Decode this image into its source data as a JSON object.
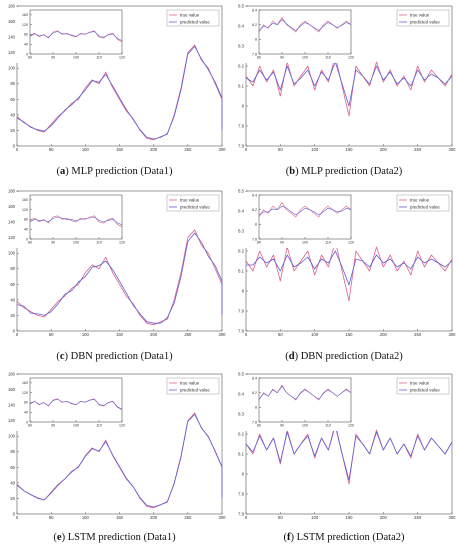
{
  "legend": {
    "true_label": "true value",
    "pred_label": "predicted value"
  },
  "colors": {
    "true": "#e0608a",
    "pred": "#5f5fd8",
    "axis": "#555555",
    "grid": "#dddddd"
  },
  "panels": [
    {
      "letter": "a",
      "caption_text": " MLP prediction (Data1)"
    },
    {
      "letter": "b",
      "caption_text": " MLP prediction (Data2)"
    },
    {
      "letter": "c",
      "caption_text": " DBN prediction (Data1)"
    },
    {
      "letter": "d",
      "caption_text": " DBN prediction (Data2)"
    },
    {
      "letter": "e",
      "caption_text": " LSTM prediction (Data1)"
    },
    {
      "letter": "f",
      "caption_text": " LSTM prediction (Data2)"
    }
  ],
  "chart_data": [
    {
      "type": "line",
      "dataset": "Data1",
      "model": "MLP",
      "xlim": [
        0,
        300
      ],
      "ylim": [
        0,
        180
      ],
      "xticks": [
        0,
        50,
        100,
        150,
        200,
        250,
        300
      ],
      "yticks": [
        0,
        20,
        40,
        60,
        80,
        100,
        120,
        140,
        160,
        180
      ],
      "x_step": 10,
      "series": [
        {
          "name": "true value",
          "values": [
            38,
            30,
            25,
            20,
            18,
            28,
            38,
            45,
            55,
            60,
            75,
            85,
            80,
            95,
            75,
            60,
            45,
            35,
            20,
            10,
            8,
            12,
            15,
            40,
            75,
            120,
            130,
            110,
            100,
            80,
            60,
            45,
            40,
            35,
            30,
            20
          ]
        },
        {
          "name": "predicted value",
          "values": [
            36,
            31,
            24,
            21,
            19,
            26,
            36,
            46,
            53,
            62,
            72,
            84,
            82,
            92,
            77,
            62,
            47,
            34,
            21,
            11,
            9,
            11,
            16,
            38,
            72,
            118,
            128,
            112,
            98,
            82,
            62,
            46,
            41,
            34,
            29,
            21
          ]
        }
      ],
      "inset": {
        "xlim": [
          80,
          120
        ],
        "ylim": [
          0,
          180
        ],
        "xticks": [
          80,
          90,
          100,
          110,
          120
        ],
        "yticks": [
          0,
          20,
          40,
          60,
          80,
          100,
          120,
          140,
          160,
          180
        ],
        "series": [
          {
            "name": "true value",
            "values": [
              75,
              85,
              70,
              80,
              65,
              90,
              95,
              80,
              85,
              75,
              70,
              85,
              80,
              90,
              95,
              70,
              65,
              80,
              85,
              60,
              50
            ]
          },
          {
            "name": "predicted value",
            "values": [
              72,
              83,
              74,
              78,
              68,
              86,
              92,
              83,
              82,
              78,
              72,
              82,
              82,
              88,
              92,
              74,
              68,
              78,
              82,
              64,
              55
            ]
          }
        ]
      }
    },
    {
      "type": "line",
      "dataset": "Data2",
      "model": "MLP",
      "xlim": [
        0,
        300
      ],
      "ylim": [
        7.8,
        8.5
      ],
      "xticks": [
        0,
        50,
        100,
        150,
        200,
        250,
        300
      ],
      "yticks": [
        7.8,
        7.9,
        8.0,
        8.1,
        8.2,
        8.3,
        8.4,
        8.5
      ],
      "x_step": 10,
      "series": [
        {
          "name": "true value",
          "values": [
            8.15,
            8.1,
            8.2,
            8.12,
            8.18,
            8.05,
            8.22,
            8.1,
            8.15,
            8.2,
            8.08,
            8.18,
            8.12,
            8.25,
            8.1,
            7.95,
            8.2,
            8.15,
            8.1,
            8.22,
            8.12,
            8.18,
            8.1,
            8.15,
            8.08,
            8.2,
            8.12,
            8.18,
            8.14,
            8.1,
            8.16
          ]
        },
        {
          "name": "predicted value",
          "values": [
            8.14,
            8.12,
            8.18,
            8.13,
            8.17,
            8.08,
            8.2,
            8.11,
            8.14,
            8.18,
            8.1,
            8.17,
            8.13,
            8.22,
            8.11,
            8.0,
            8.18,
            8.15,
            8.11,
            8.2,
            8.13,
            8.17,
            8.11,
            8.14,
            8.1,
            8.18,
            8.13,
            8.16,
            8.14,
            8.11,
            8.15
          ]
        }
      ],
      "inset": {
        "xlim": [
          80,
          120
        ],
        "ylim": [
          7.8,
          8.4
        ],
        "xticks": [
          80,
          90,
          100,
          110,
          120
        ],
        "yticks": [
          7.8,
          8.0,
          8.2,
          8.4
        ],
        "series": [
          {
            "name": "true value",
            "values": [
              8.1,
              8.2,
              8.15,
              8.25,
              8.2,
              8.3,
              8.2,
              8.15,
              8.1,
              8.2,
              8.25,
              8.2,
              8.15,
              8.1,
              8.2,
              8.25,
              8.2,
              8.15,
              8.2,
              8.25,
              8.2
            ]
          },
          {
            "name": "predicted value",
            "values": [
              8.12,
              8.18,
              8.16,
              8.22,
              8.2,
              8.27,
              8.21,
              8.16,
              8.12,
              8.18,
              8.23,
              8.2,
              8.16,
              8.12,
              8.18,
              8.23,
              8.2,
              8.16,
              8.19,
              8.23,
              8.2
            ]
          }
        ]
      }
    },
    {
      "type": "line",
      "dataset": "Data1",
      "model": "DBN",
      "xlim": [
        0,
        300
      ],
      "ylim": [
        0,
        180
      ],
      "xticks": [
        0,
        50,
        100,
        150,
        200,
        250,
        300
      ],
      "yticks": [
        0,
        20,
        40,
        60,
        80,
        100,
        120,
        140,
        160,
        180
      ],
      "x_step": 10,
      "series": [
        {
          "name": "true value",
          "values": [
            38,
            30,
            25,
            20,
            18,
            28,
            38,
            45,
            55,
            60,
            75,
            85,
            80,
            95,
            75,
            60,
            45,
            35,
            20,
            10,
            8,
            12,
            15,
            40,
            75,
            120,
            130,
            110,
            100,
            80,
            60,
            45,
            40,
            35,
            30,
            20
          ]
        },
        {
          "name": "predicted value",
          "values": [
            34,
            32,
            23,
            22,
            20,
            25,
            35,
            47,
            52,
            63,
            70,
            82,
            84,
            90,
            79,
            64,
            49,
            33,
            22,
            12,
            10,
            10,
            17,
            36,
            70,
            115,
            126,
            114,
            96,
            84,
            64,
            47,
            42,
            33,
            28,
            22
          ]
        }
      ],
      "inset": {
        "xlim": [
          80,
          120
        ],
        "ylim": [
          0,
          180
        ],
        "xticks": [
          80,
          90,
          100,
          110,
          120
        ],
        "yticks": [
          0,
          20,
          40,
          60,
          80,
          100,
          120,
          140,
          160,
          180
        ],
        "series": [
          {
            "name": "true value",
            "values": [
              75,
              85,
              70,
              80,
              65,
              90,
              95,
              80,
              85,
              75,
              70,
              85,
              80,
              90,
              95,
              70,
              65,
              80,
              85,
              60,
              50
            ]
          },
          {
            "name": "predicted value",
            "values": [
              70,
              80,
              76,
              76,
              70,
              84,
              90,
              85,
              80,
              80,
              74,
              80,
              84,
              86,
              90,
              76,
              70,
              76,
              80,
              66,
              58
            ]
          }
        ]
      }
    },
    {
      "type": "line",
      "dataset": "Data2",
      "model": "DBN",
      "xlim": [
        0,
        300
      ],
      "ylim": [
        7.8,
        8.5
      ],
      "xticks": [
        0,
        50,
        100,
        150,
        200,
        250,
        300
      ],
      "yticks": [
        7.8,
        7.9,
        8.0,
        8.1,
        8.2,
        8.3,
        8.4,
        8.5
      ],
      "x_step": 10,
      "series": [
        {
          "name": "true value",
          "values": [
            8.15,
            8.1,
            8.2,
            8.12,
            8.18,
            8.05,
            8.22,
            8.1,
            8.15,
            8.2,
            8.08,
            8.18,
            8.12,
            8.25,
            8.1,
            7.95,
            8.2,
            8.15,
            8.1,
            8.22,
            8.12,
            8.18,
            8.1,
            8.15,
            8.08,
            8.2,
            8.12,
            8.18,
            8.14,
            8.1,
            8.16
          ]
        },
        {
          "name": "predicted value",
          "values": [
            8.13,
            8.13,
            8.17,
            8.14,
            8.16,
            8.1,
            8.18,
            8.12,
            8.14,
            8.17,
            8.11,
            8.16,
            8.14,
            8.2,
            8.12,
            8.03,
            8.16,
            8.15,
            8.12,
            8.18,
            8.14,
            8.16,
            8.12,
            8.14,
            8.11,
            8.17,
            8.14,
            8.16,
            8.14,
            8.12,
            8.15
          ]
        }
      ],
      "inset": {
        "xlim": [
          80,
          120
        ],
        "ylim": [
          7.8,
          8.4
        ],
        "xticks": [
          80,
          90,
          100,
          110,
          120
        ],
        "yticks": [
          7.8,
          8.0,
          8.2,
          8.4
        ],
        "series": [
          {
            "name": "true value",
            "values": [
              8.1,
              8.2,
              8.15,
              8.25,
              8.2,
              8.3,
              8.2,
              8.15,
              8.1,
              8.2,
              8.25,
              8.2,
              8.15,
              8.1,
              8.2,
              8.25,
              8.2,
              8.15,
              8.2,
              8.25,
              8.2
            ]
          },
          {
            "name": "predicted value",
            "values": [
              8.13,
              8.17,
              8.17,
              8.21,
              8.2,
              8.25,
              8.22,
              8.17,
              8.13,
              8.17,
              8.22,
              8.2,
              8.17,
              8.13,
              8.17,
              8.22,
              8.2,
              8.17,
              8.18,
              8.22,
              8.2
            ]
          }
        ]
      }
    },
    {
      "type": "line",
      "dataset": "Data1",
      "model": "LSTM",
      "xlim": [
        0,
        300
      ],
      "ylim": [
        0,
        180
      ],
      "xticks": [
        0,
        50,
        100,
        150,
        200,
        250,
        300
      ],
      "yticks": [
        0,
        20,
        40,
        60,
        80,
        100,
        120,
        140,
        160,
        180
      ],
      "x_step": 10,
      "series": [
        {
          "name": "true value",
          "values": [
            38,
            30,
            25,
            20,
            18,
            28,
            38,
            45,
            55,
            60,
            75,
            85,
            80,
            95,
            75,
            60,
            45,
            35,
            20,
            10,
            8,
            12,
            15,
            40,
            75,
            120,
            130,
            110,
            100,
            80,
            60,
            45,
            40,
            35,
            30,
            20
          ]
        },
        {
          "name": "predicted value",
          "values": [
            37,
            30,
            25,
            21,
            18,
            27,
            37,
            45,
            54,
            61,
            74,
            84,
            81,
            93,
            76,
            61,
            46,
            35,
            21,
            11,
            9,
            12,
            16,
            39,
            73,
            119,
            128,
            111,
            99,
            81,
            61,
            46,
            40,
            34,
            30,
            21
          ]
        }
      ],
      "inset": {
        "xlim": [
          80,
          120
        ],
        "ylim": [
          0,
          180
        ],
        "xticks": [
          80,
          90,
          100,
          110,
          120
        ],
        "yticks": [
          0,
          20,
          40,
          60,
          80,
          100,
          120,
          140,
          160,
          180
        ],
        "series": [
          {
            "name": "true value",
            "values": [
              75,
              85,
              70,
              80,
              65,
              90,
              95,
              80,
              85,
              75,
              70,
              85,
              80,
              90,
              95,
              70,
              65,
              80,
              85,
              60,
              50
            ]
          },
          {
            "name": "predicted value",
            "values": [
              74,
              84,
              72,
              79,
              67,
              88,
              93,
              82,
              84,
              77,
              71,
              84,
              81,
              89,
              93,
              72,
              67,
              79,
              84,
              62,
              52
            ]
          }
        ]
      }
    },
    {
      "type": "line",
      "dataset": "Data2",
      "model": "LSTM",
      "xlim": [
        0,
        300
      ],
      "ylim": [
        7.8,
        8.5
      ],
      "xticks": [
        0,
        50,
        100,
        150,
        200,
        250,
        300
      ],
      "yticks": [
        7.8,
        7.9,
        8.0,
        8.1,
        8.2,
        8.3,
        8.4,
        8.5
      ],
      "x_step": 10,
      "series": [
        {
          "name": "true value",
          "values": [
            8.15,
            8.1,
            8.2,
            8.12,
            8.18,
            8.05,
            8.22,
            8.1,
            8.15,
            8.2,
            8.08,
            8.18,
            8.12,
            8.25,
            8.1,
            7.95,
            8.2,
            8.15,
            8.1,
            8.22,
            8.12,
            8.18,
            8.1,
            8.15,
            8.08,
            8.2,
            8.12,
            8.18,
            8.14,
            8.1,
            8.16
          ]
        },
        {
          "name": "predicted value",
          "values": [
            8.15,
            8.11,
            8.19,
            8.12,
            8.18,
            8.06,
            8.21,
            8.1,
            8.15,
            8.19,
            8.09,
            8.18,
            8.12,
            8.24,
            8.1,
            7.97,
            8.19,
            8.15,
            8.1,
            8.21,
            8.12,
            8.18,
            8.1,
            8.15,
            8.09,
            8.19,
            8.12,
            8.18,
            8.14,
            8.1,
            8.16
          ]
        }
      ],
      "inset": {
        "xlim": [
          80,
          120
        ],
        "ylim": [
          7.8,
          8.4
        ],
        "xticks": [
          80,
          90,
          100,
          110,
          120
        ],
        "yticks": [
          7.8,
          8.0,
          8.2,
          8.4
        ],
        "series": [
          {
            "name": "true value",
            "values": [
              8.1,
              8.2,
              8.15,
              8.25,
              8.2,
              8.3,
              8.2,
              8.15,
              8.1,
              8.2,
              8.25,
              8.2,
              8.15,
              8.1,
              8.2,
              8.25,
              8.2,
              8.15,
              8.2,
              8.25,
              8.2
            ]
          },
          {
            "name": "predicted value",
            "values": [
              8.11,
              8.19,
              8.15,
              8.24,
              8.2,
              8.29,
              8.2,
              8.15,
              8.11,
              8.19,
              8.24,
              8.2,
              8.15,
              8.11,
              8.19,
              8.24,
              8.2,
              8.15,
              8.2,
              8.24,
              8.2
            ]
          }
        ]
      }
    }
  ]
}
